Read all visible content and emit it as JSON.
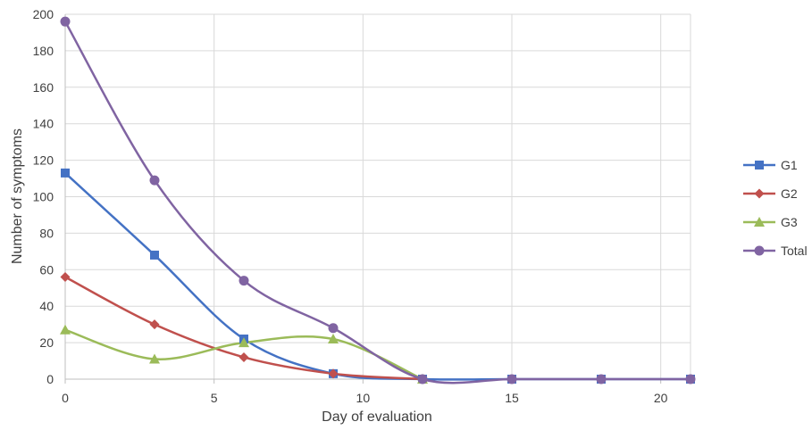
{
  "chart_data": {
    "type": "line",
    "xlabel": "Day of evaluation",
    "ylabel": "Number of symptoms",
    "xlim": [
      0,
      21
    ],
    "ylim": [
      0,
      200
    ],
    "x_ticks": [
      0,
      5,
      10,
      15,
      20
    ],
    "y_ticks": [
      0,
      20,
      40,
      60,
      80,
      100,
      120,
      140,
      160,
      180,
      200
    ],
    "grid": true,
    "smooth": true,
    "legend_position": "right",
    "series": [
      {
        "name": "G1",
        "color": "#4472c4",
        "marker": "square",
        "x": [
          0,
          3,
          6,
          9,
          12,
          15,
          18,
          21
        ],
        "y": [
          113,
          68,
          22,
          3,
          0,
          0,
          0,
          0
        ]
      },
      {
        "name": "G2",
        "color": "#c0504d",
        "marker": "diamond",
        "x": [
          0,
          3,
          6,
          9,
          12
        ],
        "y": [
          56,
          30,
          12,
          3,
          0
        ]
      },
      {
        "name": "G3",
        "color": "#9bbb59",
        "marker": "triangle",
        "x": [
          0,
          3,
          6,
          9,
          12
        ],
        "y": [
          27,
          11,
          20,
          22,
          0
        ]
      },
      {
        "name": "Total",
        "color": "#8064a2",
        "marker": "circle",
        "x": [
          0,
          3,
          6,
          9,
          12,
          15,
          18,
          21
        ],
        "y": [
          196,
          109,
          54,
          28,
          0,
          0,
          0,
          0
        ]
      }
    ]
  }
}
